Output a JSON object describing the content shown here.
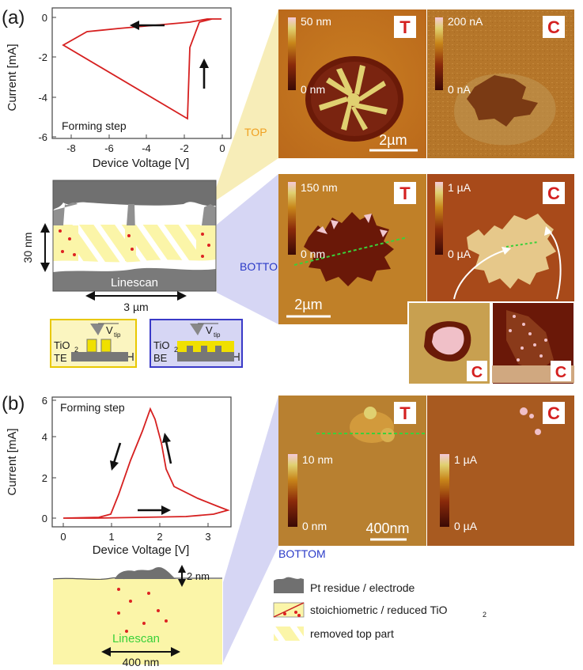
{
  "panel_a": {
    "label": "(a)",
    "plot": {
      "ylabel": "Current [mA]",
      "xlabel": "Device Voltage [V]",
      "yticks": [
        "0",
        "-2",
        "-4",
        "-6"
      ],
      "xticks": [
        "-8",
        "-6",
        "-4",
        "-2",
        "0"
      ],
      "annotation": "Forming step"
    },
    "top_label": "TOP",
    "bottom_label": "BOTTOM",
    "cross_section": {
      "thickness": "30 nm",
      "width": "3 µm",
      "linescan": "Linescan"
    },
    "schematics": [
      {
        "material": "TiO",
        "sub": "2",
        "electrode": "TE",
        "tip": "V",
        "tip_sub": "tip"
      },
      {
        "material": "TiO",
        "sub": "2",
        "electrode": "BE",
        "tip": "V",
        "tip_sub": "tip"
      }
    ],
    "top_images": {
      "T": {
        "badge": "T",
        "cb_max": "50 nm",
        "cb_min": "0 nm",
        "scale": "2µm"
      },
      "C": {
        "badge": "C",
        "cb_max": "200 nA",
        "cb_min": "0 nA"
      }
    },
    "bottom_images": {
      "T": {
        "badge": "T",
        "cb_max": "150 nm",
        "cb_min": "0 nm",
        "scale": "2µm"
      },
      "C": {
        "badge": "C",
        "cb_max": "1 µA",
        "cb_min": "0 µA"
      },
      "insets": [
        {
          "badge": "C"
        },
        {
          "badge": "C"
        }
      ]
    }
  },
  "panel_b": {
    "label": "(b)",
    "plot": {
      "ylabel": "Current [mA]",
      "xlabel": "Device Voltage [V]",
      "yticks": [
        "6",
        "4",
        "2",
        "0"
      ],
      "xticks": [
        "0",
        "1",
        "2",
        "3"
      ],
      "annotation": "Forming step"
    },
    "cross_section": {
      "height": "2 nm",
      "width": "400 nm",
      "linescan": "Linescan"
    },
    "bottom_label": "BOTTOM",
    "images": {
      "T": {
        "badge": "T",
        "cb_max": "10 nm",
        "cb_min": "0 nm",
        "scale": "400nm"
      },
      "C": {
        "badge": "C",
        "cb_max": "1 µA",
        "cb_min": "0 µA"
      }
    }
  },
  "legend": {
    "items": [
      {
        "text": "Pt residue / electrode"
      },
      {
        "text": "stoichiometric / reduced TiO",
        "sub": "2"
      },
      {
        "text": "removed top part"
      }
    ]
  },
  "colors": {
    "curve": "#d62020",
    "afm_topo": "#c8781e",
    "afm_current": "#a84a1a",
    "pt_grey": "#707070",
    "tio2_yellow": "#fbf5a8",
    "top_link": "#f4e7a0",
    "bottom_link": "#c8c8f0",
    "badge_red": "#d42020",
    "linescan_green": "#3ad03a"
  }
}
